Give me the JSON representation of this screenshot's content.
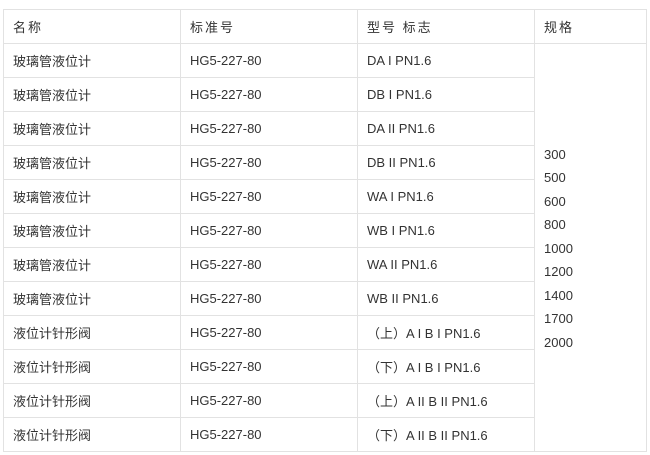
{
  "headers": [
    "名称",
    "标准号",
    "型号 标志",
    "规格"
  ],
  "rows": [
    {
      "name": "玻璃管液位计",
      "standard": "HG5-227-80",
      "model": "DA I PN1.6"
    },
    {
      "name": "玻璃管液位计",
      "standard": "HG5-227-80",
      "model": "DB I PN1.6"
    },
    {
      "name": "玻璃管液位计",
      "standard": "HG5-227-80",
      "model": "DA II PN1.6"
    },
    {
      "name": "玻璃管液位计",
      "standard": "HG5-227-80",
      "model": "DB II PN1.6"
    },
    {
      "name": "玻璃管液位计",
      "standard": "HG5-227-80",
      "model": "WA I PN1.6"
    },
    {
      "name": "玻璃管液位计",
      "standard": "HG5-227-80",
      "model": "WB I PN1.6"
    },
    {
      "name": "玻璃管液位计",
      "standard": "HG5-227-80",
      "model": "WA II PN1.6"
    },
    {
      "name": "玻璃管液位计",
      "standard": "HG5-227-80",
      "model": "WB II PN1.6"
    },
    {
      "name": "液位计针形阀",
      "standard": "HG5-227-80",
      "model": "（上）A I B I PN1.6"
    },
    {
      "name": "液位计针形阀",
      "standard": "HG5-227-80",
      "model": "（下）A I B I PN1.6"
    },
    {
      "name": "液位计针形阀",
      "standard": "HG5-227-80",
      "model": "（上）A II B II PN1.6"
    },
    {
      "name": "液位计针形阀",
      "standard": "HG5-227-80",
      "model": "（下）A II B II PN1.6"
    }
  ],
  "specs": [
    "300",
    "500",
    "600",
    "800",
    "1000",
    "1200",
    "1400",
    "1700",
    "2000"
  ]
}
